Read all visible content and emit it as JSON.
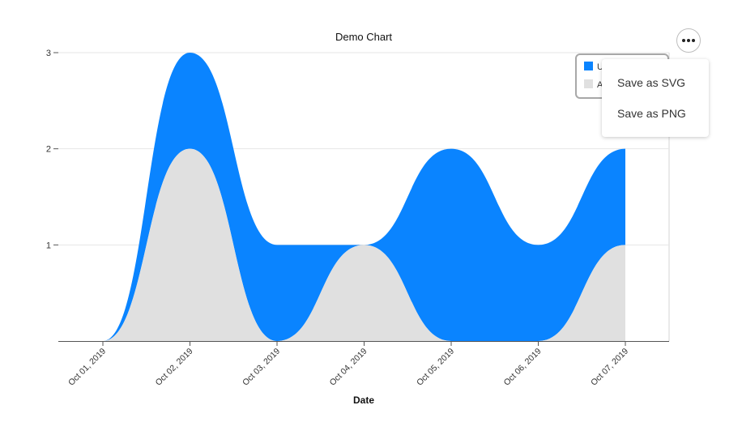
{
  "chart_data": {
    "type": "area",
    "stacked": true,
    "curve": "smooth",
    "title": "Demo Chart",
    "xlabel": "Date",
    "ylabel": "",
    "x": [
      "Oct 01, 2019",
      "Oct 02, 2019",
      "Oct 03, 2019",
      "Oct 04, 2019",
      "Oct 05, 2019",
      "Oct 06, 2019",
      "Oct 07, 2019"
    ],
    "ylim": [
      0,
      3
    ],
    "yticks": [
      1,
      2,
      3
    ],
    "grid": "horizontal",
    "legend": {
      "placement": "top-right",
      "entries_visible_text": [
        "U",
        "A"
      ]
    },
    "series": [
      {
        "values": [
          0,
          2,
          0,
          1,
          0,
          0,
          1
        ],
        "color": "#e0e0e0"
      },
      {
        "values": [
          0,
          1,
          1,
          0,
          2,
          1,
          1
        ],
        "color": "#0a84ff"
      }
    ]
  },
  "menu": {
    "button_icon": "more-horizontal-icon",
    "items": [
      {
        "label": "Save as SVG"
      },
      {
        "label": "Save as PNG"
      }
    ]
  }
}
